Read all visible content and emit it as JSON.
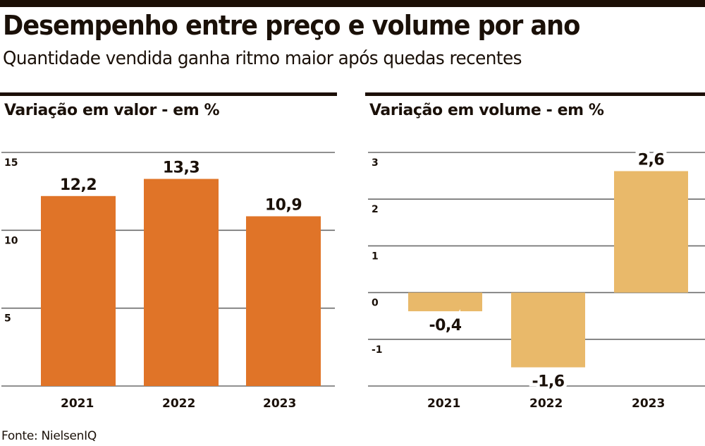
{
  "header": {
    "title": "Desempenho entre preço e volume por ano",
    "subtitle": "Quantidade vendida ganha ritmo maior após quedas recentes"
  },
  "source": "Fonte: NielsenIQ",
  "colors": {
    "dark": "#1c0f06",
    "value_bar": "#e07428",
    "volume_bar": "#e9b96a",
    "grid": "#6b6b6b"
  },
  "chart_data": [
    {
      "type": "bar",
      "title": "Variação em valor - em %",
      "categories": [
        "2021",
        "2022",
        "2023"
      ],
      "values": [
        12.2,
        13.3,
        10.9
      ],
      "value_labels": [
        "12,2",
        "13,3",
        "10,9"
      ],
      "yticks": [
        15,
        10,
        5
      ],
      "ytick_labels": [
        "15",
        "10",
        "5"
      ],
      "ylim": [
        0,
        15
      ],
      "grid": true,
      "xlabel": "",
      "ylabel": ""
    },
    {
      "type": "bar",
      "title": "Variação em volume - em %",
      "categories": [
        "2021",
        "2022",
        "2023"
      ],
      "values": [
        -0.4,
        -1.6,
        2.6
      ],
      "value_labels": [
        "-0,4",
        "-1,6",
        "2,6"
      ],
      "yticks": [
        3,
        2,
        1,
        0,
        -1
      ],
      "ytick_labels": [
        "3",
        "2",
        "1",
        "0",
        "-1"
      ],
      "ylim": [
        -2,
        3
      ],
      "grid": true,
      "xlabel": "",
      "ylabel": ""
    }
  ]
}
